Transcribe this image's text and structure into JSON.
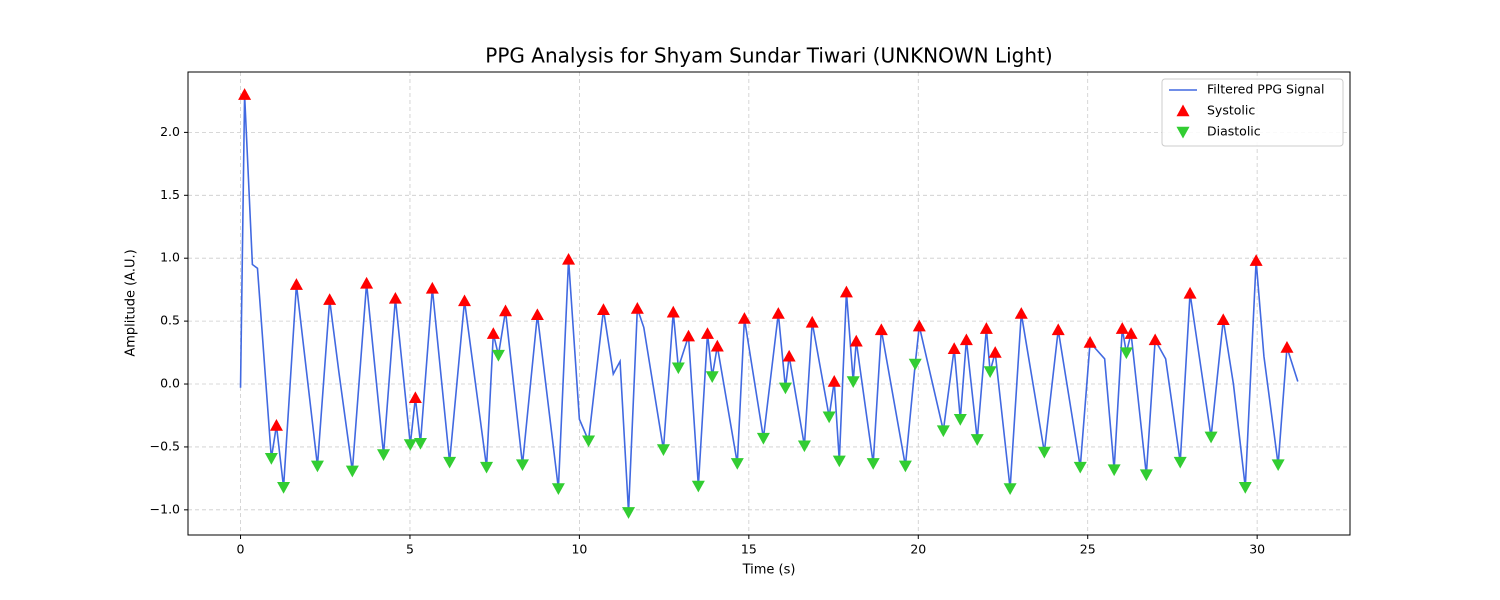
{
  "chart_data": {
    "type": "line",
    "title": "PPG Analysis for Shyam Sundar Tiwari (UNKNOWN Light)",
    "x_label": "Time (s)",
    "y_label": "Amplitude (A.U.)",
    "xlim": [
      -1.55,
      32.74
    ],
    "ylim": [
      -1.2,
      2.48
    ],
    "xticks": [
      0,
      5,
      10,
      15,
      20,
      25,
      30
    ],
    "yticks": [
      {
        "value": -1,
        "label": "−1.0"
      },
      {
        "value": -0.5,
        "label": "−0.5"
      },
      {
        "value": 0,
        "label": "0.0"
      },
      0.5,
      {
        "value": 1,
        "label": "1.0"
      },
      1.5,
      {
        "value": 2,
        "label": "2.0"
      }
    ],
    "grid": true,
    "legend": "upper right",
    "series": [
      {
        "name": "Filtered PPG Signal",
        "color": "#4169e1",
        "marker": "none",
        "x": [
          0,
          0.12,
          0.35,
          0.5,
          0.91,
          1.06,
          1.27,
          1.65,
          2.27,
          2.63,
          2.9,
          3.3,
          3.72,
          4.22,
          4.57,
          5.01,
          5.16,
          5.31,
          5.66,
          6.17,
          6.61,
          7.26,
          7.46,
          7.61,
          7.82,
          8.32,
          8.76,
          9.38,
          9.68,
          10.0,
          10.27,
          10.71,
          11.0,
          11.2,
          11.45,
          11.71,
          11.9,
          12.48,
          12.77,
          12.92,
          13.22,
          13.51,
          13.78,
          13.92,
          14.07,
          14.66,
          14.87,
          15.43,
          15.87,
          16.08,
          16.19,
          16.64,
          16.87,
          17.37,
          17.52,
          17.67,
          17.88,
          18.08,
          18.17,
          18.67,
          18.91,
          19.62,
          19.91,
          20.03,
          20.74,
          21.06,
          21.24,
          21.42,
          21.74,
          22.01,
          22.12,
          22.27,
          22.71,
          23.04,
          23.72,
          24.13,
          24.78,
          25.07,
          25.5,
          25.78,
          26.02,
          26.14,
          26.28,
          26.73,
          26.99,
          27.3,
          27.73,
          28.02,
          28.64,
          29.0,
          29.3,
          29.65,
          29.97,
          30.2,
          30.62,
          30.88,
          31.2
        ],
        "values": [
          -0.03,
          2.3,
          0.95,
          0.92,
          -0.59,
          -0.33,
          -0.82,
          0.79,
          -0.65,
          0.67,
          0.1,
          -0.69,
          0.8,
          -0.56,
          0.68,
          -0.48,
          -0.11,
          -0.47,
          0.76,
          -0.62,
          0.66,
          -0.66,
          0.4,
          0.23,
          0.58,
          -0.64,
          0.55,
          -0.83,
          0.99,
          -0.28,
          -0.45,
          0.59,
          0.08,
          0.18,
          -1.02,
          0.6,
          0.45,
          -0.52,
          0.57,
          0.13,
          0.38,
          -0.81,
          0.4,
          0.06,
          0.3,
          -0.63,
          0.52,
          -0.43,
          0.56,
          -0.03,
          0.22,
          -0.49,
          0.49,
          -0.26,
          0.02,
          -0.61,
          0.73,
          0.02,
          0.34,
          -0.63,
          0.43,
          -0.65,
          0.16,
          0.46,
          -0.37,
          0.28,
          -0.28,
          0.35,
          -0.44,
          0.44,
          0.1,
          0.25,
          -0.83,
          0.56,
          -0.54,
          0.43,
          -0.66,
          0.33,
          0.2,
          -0.68,
          0.44,
          0.25,
          0.4,
          -0.72,
          0.35,
          0.2,
          -0.62,
          0.72,
          -0.42,
          0.51,
          0.0,
          -0.82,
          0.98,
          0.22,
          -0.64,
          0.29,
          0.02
        ]
      },
      {
        "name": "Systolic",
        "color": "#ff0000",
        "marker": "triangle-up",
        "x": [
          0.12,
          1.06,
          1.65,
          2.63,
          3.72,
          4.57,
          5.16,
          5.66,
          6.61,
          7.46,
          7.82,
          8.76,
          9.68,
          10.71,
          11.71,
          12.77,
          13.22,
          13.78,
          14.07,
          14.87,
          15.87,
          16.19,
          16.87,
          17.52,
          17.88,
          18.17,
          18.91,
          20.03,
          21.06,
          21.42,
          22.01,
          22.27,
          23.04,
          24.13,
          25.07,
          26.02,
          26.28,
          26.99,
          28.02,
          29.0,
          29.97,
          30.88
        ],
        "values": [
          2.3,
          -0.33,
          0.79,
          0.67,
          0.8,
          0.68,
          -0.11,
          0.76,
          0.66,
          0.4,
          0.58,
          0.55,
          0.99,
          0.59,
          0.6,
          0.57,
          0.38,
          0.4,
          0.3,
          0.52,
          0.56,
          0.22,
          0.49,
          0.02,
          0.73,
          0.34,
          0.43,
          0.46,
          0.28,
          0.35,
          0.44,
          0.25,
          0.56,
          0.43,
          0.33,
          0.44,
          0.4,
          0.35,
          0.72,
          0.51,
          0.98,
          0.29
        ]
      },
      {
        "name": "Diastolic",
        "color": "#32cd32",
        "marker": "triangle-down",
        "x": [
          0.91,
          1.27,
          2.27,
          3.3,
          4.22,
          5.01,
          5.31,
          6.17,
          7.26,
          7.61,
          8.32,
          9.38,
          10.27,
          11.45,
          12.48,
          12.92,
          13.51,
          13.92,
          14.66,
          15.43,
          16.08,
          16.64,
          17.37,
          17.67,
          18.08,
          18.67,
          19.62,
          19.91,
          20.74,
          21.24,
          21.74,
          22.12,
          22.71,
          23.72,
          24.78,
          25.78,
          26.14,
          26.73,
          27.73,
          28.64,
          29.65,
          30.62
        ],
        "values": [
          -0.59,
          -0.82,
          -0.65,
          -0.69,
          -0.56,
          -0.48,
          -0.47,
          -0.62,
          -0.66,
          0.23,
          -0.64,
          -0.83,
          -0.45,
          -1.02,
          -0.52,
          0.13,
          -0.81,
          0.06,
          -0.63,
          -0.43,
          -0.03,
          -0.49,
          -0.26,
          -0.61,
          0.02,
          -0.63,
          -0.65,
          0.16,
          -0.37,
          -0.28,
          -0.44,
          0.1,
          -0.83,
          -0.54,
          -0.66,
          -0.68,
          0.25,
          -0.72,
          -0.62,
          -0.42,
          -0.82,
          -0.64
        ]
      }
    ]
  }
}
